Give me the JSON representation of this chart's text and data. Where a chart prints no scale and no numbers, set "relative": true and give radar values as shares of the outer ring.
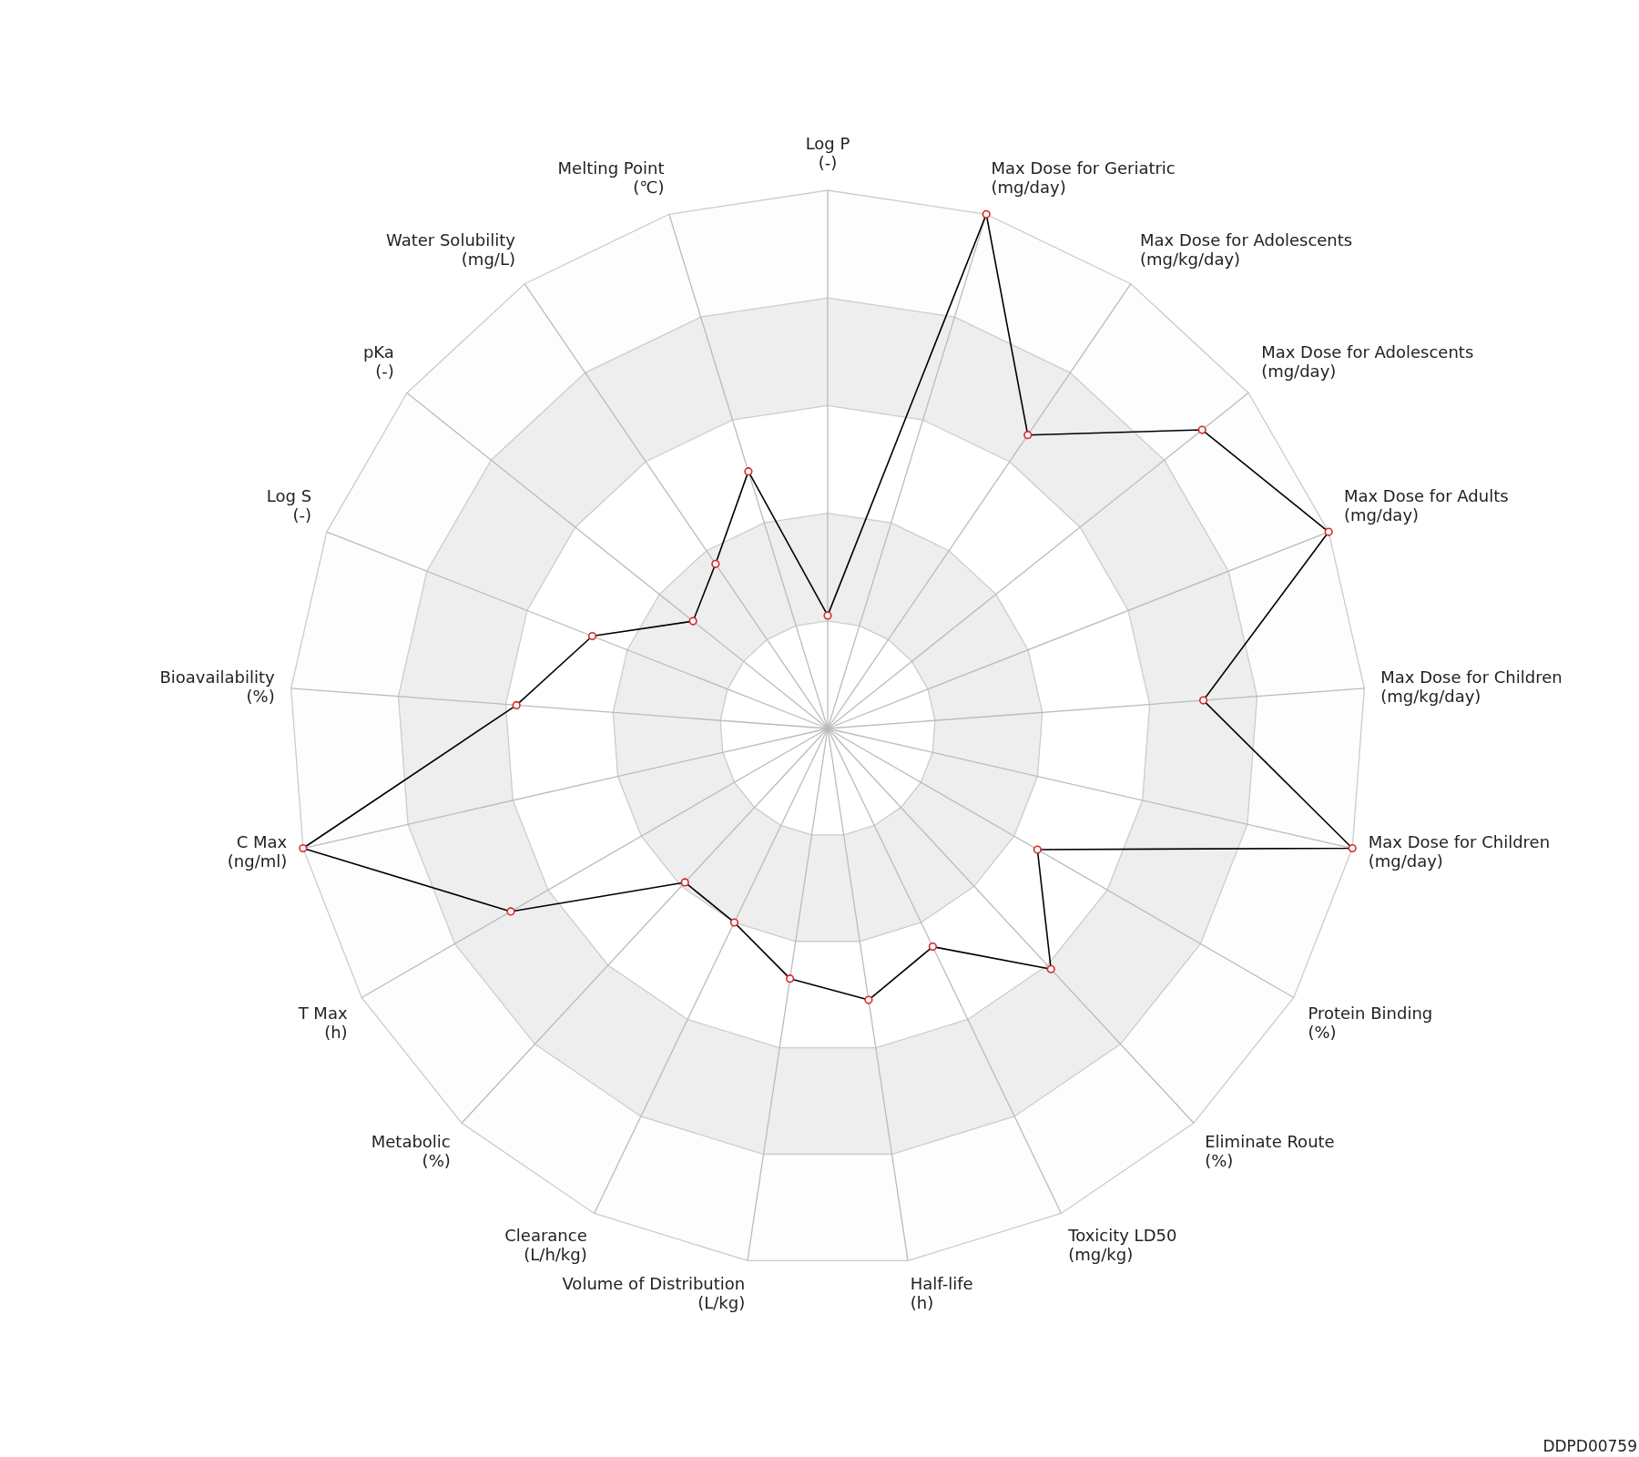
{
  "chart_data": {
    "type": "radar",
    "relative": true,
    "grid": true,
    "marker": "circle",
    "categories": [
      "Log P\n(-)",
      "Max Dose for Geriatric\n(mg/day)",
      "Max Dose for Adolescents\n(mg/kg/day)",
      "Max Dose for Adolescents\n(mg/day)",
      "Max Dose for Adults\n(mg/day)",
      "Max Dose for Children\n(mg/kg/day)",
      "Max Dose for Children\n(mg/day)",
      "Protein Binding\n(%)",
      "Eliminate Route\n(%)",
      "Toxicity LD50\n(mg/kg)",
      "Half-life\n(h)",
      "Volume of Distribution\n(L/kg)",
      "Clearance\n(L/h/kg)",
      "Metabolic\n(%)",
      "T Max\n(h)",
      "C Max\n(ng/ml)",
      "Bioavailability\n(%)",
      "Log S\n(-)",
      "pKa\n(-)",
      "Water Solubility\n(mg/L)",
      "Melting Point\n(℃)"
    ],
    "series": [
      {
        "color": "#000000",
        "values": [
          0.21,
          1.0,
          0.66,
          0.89,
          1.0,
          0.7,
          1.0,
          0.45,
          0.61,
          0.45,
          0.51,
          0.47,
          0.4,
          0.39,
          0.68,
          1.0,
          0.58,
          0.47,
          0.32,
          0.37,
          0.5
        ]
      }
    ],
    "annotations": [
      "DDPD00759"
    ]
  }
}
